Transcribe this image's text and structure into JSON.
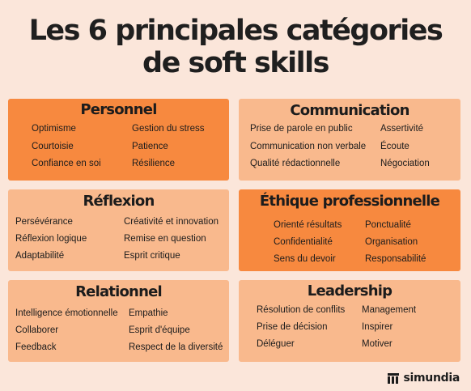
{
  "title": {
    "line1": "Les 6 principales catégories",
    "line2": "de soft skills"
  },
  "cards": [
    {
      "heading": "Personnel",
      "col1": [
        "Optimisme",
        "Courtoisie",
        "Confiance en soi"
      ],
      "col2": [
        "Gestion du stress",
        "Patience",
        "Résilience"
      ]
    },
    {
      "heading": "Communication",
      "col1": [
        "Prise de parole en public",
        "Communication non verbale",
        "Qualité rédactionnelle"
      ],
      "col2": [
        "Assertivité",
        "Écoute",
        "Négociation"
      ]
    },
    {
      "heading": "Réflexion",
      "col1": [
        "Persévérance",
        "Réflexion logique",
        "Adaptabilité"
      ],
      "col2": [
        "Créativité et innovation",
        "Remise en question",
        "Esprit critique"
      ]
    },
    {
      "heading": "Éthique professionnelle",
      "col1": [
        "Orienté résultats",
        "Confidentialité",
        "Sens du devoir"
      ],
      "col2": [
        "Ponctualité",
        "Organisation",
        "Responsabilité"
      ]
    },
    {
      "heading": "Relationnel",
      "col1": [
        "Intelligence émotionnelle",
        "Collaborer",
        "Feedback"
      ],
      "col2": [
        "Empathie",
        "Esprit d'équipe",
        "Respect de la diversité"
      ]
    },
    {
      "heading": "Leadership",
      "col1": [
        "Résolution de conflits",
        "Prise de décision",
        "Déléguer"
      ],
      "col2": [
        "Management",
        "Inspirer",
        "Motiver"
      ]
    }
  ],
  "colors": {
    "background": "#fbe6da",
    "card_dark": "#f7893f",
    "card_light": "#f9b98d",
    "text": "#1c1c1c"
  },
  "logo": {
    "icon": "simundia-logo-icon",
    "text": "simundia"
  }
}
